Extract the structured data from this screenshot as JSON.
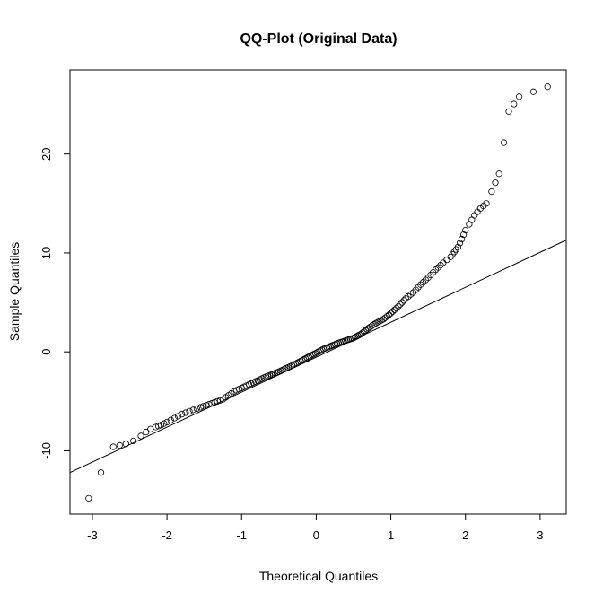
{
  "chart_data": {
    "type": "scatter",
    "title": "QQ-Plot (Original Data)",
    "xlabel": "Theoretical Quantiles",
    "ylabel": "Sample Quantiles",
    "xlim": [
      -3.3,
      3.35
    ],
    "ylim": [
      -16.4,
      28.5
    ],
    "x_ticks": [
      -3,
      -2,
      -1,
      0,
      1,
      2,
      3
    ],
    "y_ticks": [
      -10,
      0,
      10,
      20
    ],
    "grid": false,
    "reference_line": {
      "x": [
        -3.3,
        3.35
      ],
      "y": [
        -12.2,
        11.3
      ]
    },
    "points_sample": {
      "x": [
        -3.05,
        -2.72,
        -2.55,
        -2.45,
        -2.35,
        -2.28,
        -2.22,
        -2.15,
        -2.08,
        -2.0,
        -1.9,
        -1.8,
        -1.7,
        -1.55,
        -1.4,
        -1.25,
        -1.1,
        -0.9,
        -0.7,
        -0.5,
        -0.3,
        -0.1,
        0.1,
        0.3,
        0.5,
        0.6,
        0.7,
        0.8,
        0.9,
        1.0,
        1.1,
        1.2,
        1.3,
        1.4,
        1.5,
        1.6,
        1.7,
        1.8,
        1.85,
        1.9,
        1.95,
        2.0,
        2.05,
        2.12,
        2.2,
        2.28,
        2.35,
        2.45,
        2.58,
        2.72,
        3.1
      ],
      "y": [
        -14.8,
        -9.6,
        -9.3,
        -9.0,
        -8.5,
        -8.1,
        -7.8,
        -7.6,
        -7.4,
        -7.1,
        -6.7,
        -6.3,
        -6.0,
        -5.6,
        -5.2,
        -4.8,
        -4.0,
        -3.3,
        -2.6,
        -2.0,
        -1.3,
        -0.5,
        0.3,
        0.9,
        1.4,
        1.8,
        2.4,
        2.9,
        3.3,
        3.9,
        4.6,
        5.4,
        6.0,
        6.8,
        7.5,
        8.3,
        9.0,
        9.6,
        10.1,
        10.6,
        11.4,
        12.3,
        12.9,
        13.8,
        14.5,
        15.0,
        16.2,
        18.0,
        24.3,
        25.8,
        26.8
      ]
    }
  }
}
